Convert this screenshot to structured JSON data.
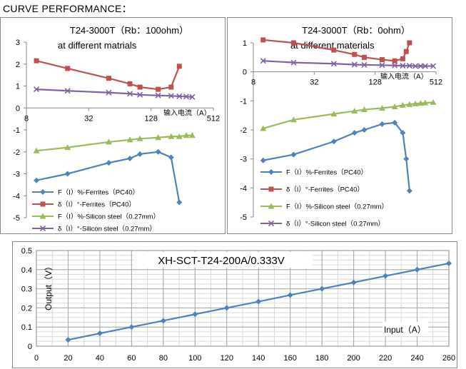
{
  "heading": "CURVE PERFORMANCE：",
  "chart_data": [
    {
      "type": "line",
      "title": "T24-3000T（Rb：100ohm）",
      "subtitle": "at different matrials",
      "xlabel": "输入电流（A）",
      "xscale": "log2",
      "xticks": [
        "8",
        "32",
        "128",
        "512"
      ],
      "xlim": [
        8,
        512
      ],
      "ylim": [
        -5,
        3
      ],
      "yticks": [
        "3",
        "2",
        "1",
        "0",
        "-1",
        "-2",
        "-3",
        "-4",
        "-5"
      ],
      "x": [
        10,
        20,
        50,
        80,
        100,
        150,
        200,
        240
      ],
      "series": [
        {
          "name": "F（I）%-Ferrites（PC40）",
          "color": "#4f81bd",
          "marker": "diamond",
          "x": [
            10,
            20,
            50,
            80,
            100,
            150,
            200,
            240
          ],
          "values": [
            -3.3,
            -3.0,
            -2.5,
            -2.3,
            -2.1,
            -2.0,
            -2.25,
            -4.3
          ]
        },
        {
          "name": "δ（I）°-Ferrites（PC40）",
          "color": "#c0504d",
          "marker": "square",
          "x": [
            10,
            20,
            50,
            80,
            100,
            150,
            200,
            240
          ],
          "values": [
            2.15,
            1.8,
            1.35,
            1.1,
            0.95,
            0.85,
            0.95,
            1.9
          ]
        },
        {
          "name": "F（I）%-Silicon steel（0.27mm）",
          "color": "#9bbb59",
          "marker": "triangle",
          "x": [
            10,
            20,
            50,
            80,
            100,
            150,
            200,
            240,
            280,
            320
          ],
          "values": [
            -1.95,
            -1.8,
            -1.55,
            -1.45,
            -1.4,
            -1.35,
            -1.3,
            -1.3,
            -1.25,
            -1.25
          ]
        },
        {
          "name": "δ（I）°-Silicon steel（0.27mm）",
          "color": "#8064a2",
          "marker": "x",
          "x": [
            10,
            20,
            50,
            80,
            100,
            150,
            200,
            240,
            280,
            320
          ],
          "values": [
            0.85,
            0.78,
            0.7,
            0.65,
            0.6,
            0.57,
            0.55,
            0.53,
            0.52,
            0.5
          ]
        }
      ]
    },
    {
      "type": "line",
      "title": "T24-3000T（Rb：0ohm）",
      "subtitle": "at different materials",
      "xlabel": "输入电流（A）",
      "xscale": "log2",
      "xticks": [
        "8",
        "32",
        "128",
        "512"
      ],
      "xlim": [
        8,
        512
      ],
      "ylim": [
        -5,
        1
      ],
      "yticks": [
        "1",
        "0",
        "-1",
        "-2",
        "-3",
        "-4",
        "-5"
      ],
      "series": [
        {
          "name": "F（I）%-Ferrites（PC40）",
          "color": "#4f81bd",
          "marker": "diamond",
          "x": [
            10,
            20,
            50,
            80,
            100,
            150,
            200,
            240,
            260,
            280
          ],
          "values": [
            -3.05,
            -2.85,
            -2.4,
            -2.1,
            -2.0,
            -1.8,
            -1.75,
            -2.1,
            -3.0,
            -4.1
          ]
        },
        {
          "name": "δ（I）°-Ferrites（PC40）",
          "color": "#c0504d",
          "marker": "square",
          "x": [
            10,
            20,
            50,
            80,
            100,
            150,
            200,
            240,
            260,
            280
          ],
          "values": [
            1.1,
            1.0,
            0.75,
            0.6,
            0.5,
            0.42,
            0.38,
            0.45,
            0.7,
            1.0
          ]
        },
        {
          "name": "F（I）%-Silicon steel（0.27mm）",
          "color": "#9bbb59",
          "marker": "triangle",
          "x": [
            10,
            20,
            50,
            80,
            100,
            150,
            200,
            240,
            280,
            320,
            360,
            400,
            480
          ],
          "values": [
            -1.95,
            -1.65,
            -1.45,
            -1.35,
            -1.3,
            -1.25,
            -1.2,
            -1.15,
            -1.12,
            -1.1,
            -1.08,
            -1.07,
            -1.05
          ]
        },
        {
          "name": "δ（I）°-Silicon steel（0.27mm）",
          "color": "#8064a2",
          "marker": "x",
          "x": [
            10,
            20,
            50,
            80,
            100,
            150,
            200,
            240,
            280,
            320,
            360,
            400,
            480
          ],
          "values": [
            0.38,
            0.32,
            0.28,
            0.25,
            0.24,
            0.23,
            0.22,
            0.21,
            0.21,
            0.2,
            0.2,
            0.2,
            0.2
          ]
        }
      ]
    },
    {
      "type": "line",
      "title": "XH-SCT-T24-200A/0.333V",
      "xlabel": "Input（A）",
      "ylabel": "Output（V）",
      "xlim": [
        0,
        260
      ],
      "ylim": [
        0,
        0.5
      ],
      "xticks": [
        "0",
        "20",
        "40",
        "60",
        "80",
        "100",
        "120",
        "140",
        "160",
        "180",
        "200",
        "220",
        "240",
        "260"
      ],
      "yticks": [
        "0.5",
        "0.4",
        "0.3",
        "0.2",
        "0.1",
        "0"
      ],
      "grid": true,
      "series": [
        {
          "name": "Output",
          "color": "#4f81bd",
          "marker": "diamond",
          "x": [
            20,
            40,
            60,
            80,
            100,
            120,
            140,
            160,
            180,
            200,
            220,
            240,
            260
          ],
          "values": [
            0.033,
            0.067,
            0.1,
            0.133,
            0.167,
            0.2,
            0.233,
            0.267,
            0.3,
            0.333,
            0.367,
            0.4,
            0.433
          ]
        }
      ]
    }
  ]
}
